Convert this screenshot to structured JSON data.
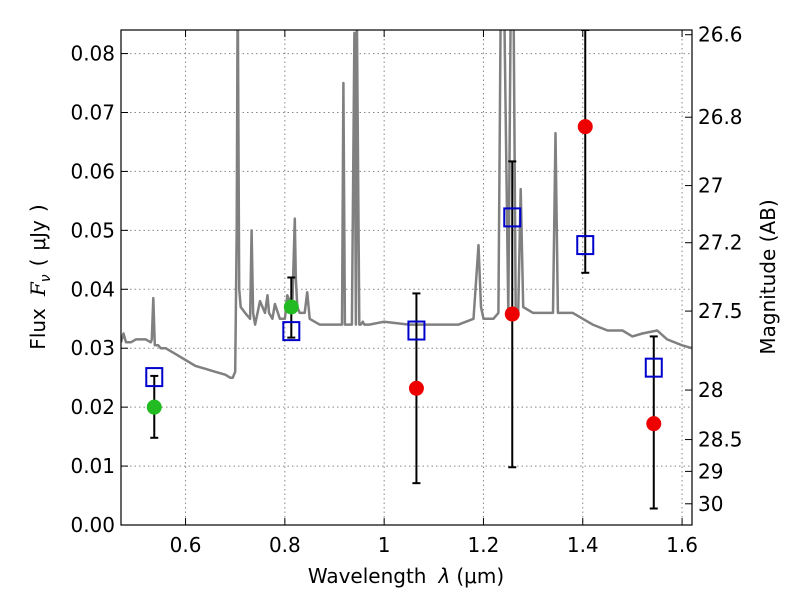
{
  "chart_data": {
    "type": "scatter",
    "xlabel": "Wavelength",
    "xlabel_symbol": "λ",
    "xlabel_unit": "(μm)",
    "ylabel": "Flux",
    "ylabel_symbol": "F",
    "ylabel_subscript": "ν",
    "ylabel_unit": "μJy",
    "y2label": "Magnitude (AB)",
    "xlim": [
      0.47,
      1.62
    ],
    "ylim": [
      0.0,
      0.084
    ],
    "grid": true,
    "x_ticks": [
      0.6,
      0.8,
      1.0,
      1.2,
      1.4,
      1.6
    ],
    "x_tick_labels": [
      "0.6",
      "0.8",
      "1",
      "1.2",
      "1.4",
      "1.6"
    ],
    "y_ticks": [
      0.0,
      0.01,
      0.02,
      0.03,
      0.04,
      0.05,
      0.06,
      0.07,
      0.08
    ],
    "y_tick_labels": [
      "0.00",
      "0.01",
      "0.02",
      "0.03",
      "0.04",
      "0.05",
      "0.06",
      "0.07",
      "0.08"
    ],
    "y2_ticks": [
      {
        "label": "26.6",
        "flux": 0.0832
      },
      {
        "label": "26.8",
        "flux": 0.0692
      },
      {
        "label": "27",
        "flux": 0.0576
      },
      {
        "label": "27.2",
        "flux": 0.0479
      },
      {
        "label": "27.5",
        "flux": 0.0363
      },
      {
        "label": "28",
        "flux": 0.0229
      },
      {
        "label": "28.5",
        "flux": 0.0145
      },
      {
        "label": "29",
        "flux": 0.0091
      },
      {
        "label": "30",
        "flux": 0.0036
      }
    ],
    "colors": {
      "model": "#808080",
      "detection": "#22bb22",
      "upper_limit": "#ee0000",
      "model_band": "#0000cc",
      "errorbar": "#000000",
      "grid": "#888888"
    },
    "model_spectrum": {
      "x": [
        0.47,
        0.475,
        0.48,
        0.49,
        0.5,
        0.51,
        0.52,
        0.53,
        0.532,
        0.535,
        0.538,
        0.545,
        0.55,
        0.56,
        0.57,
        0.58,
        0.6,
        0.62,
        0.64,
        0.66,
        0.68,
        0.69,
        0.695,
        0.7,
        0.703,
        0.705,
        0.708,
        0.711,
        0.72,
        0.73,
        0.733,
        0.736,
        0.74,
        0.75,
        0.76,
        0.765,
        0.768,
        0.775,
        0.78,
        0.79,
        0.8,
        0.805,
        0.81,
        0.815,
        0.82,
        0.822,
        0.825,
        0.83,
        0.84,
        0.845,
        0.85,
        0.86,
        0.87,
        0.88,
        0.9,
        0.915,
        0.918,
        0.921,
        0.925,
        0.935,
        0.94,
        0.943,
        0.945,
        0.95,
        0.953,
        0.957,
        0.96,
        0.97,
        1.0,
        1.05,
        1.1,
        1.15,
        1.18,
        1.19,
        1.195,
        1.2,
        1.21,
        1.22,
        1.23,
        1.235,
        1.24,
        1.25,
        1.255,
        1.26,
        1.265,
        1.27,
        1.275,
        1.28,
        1.3,
        1.33,
        1.34,
        1.345,
        1.35,
        1.36,
        1.37,
        1.38,
        1.4,
        1.42,
        1.45,
        1.48,
        1.5,
        1.52,
        1.55,
        1.57,
        1.6,
        1.62
      ],
      "y": [
        0.031,
        0.0325,
        0.031,
        0.031,
        0.0315,
        0.0315,
        0.0315,
        0.031,
        0.0315,
        0.0385,
        0.0305,
        0.0305,
        0.03,
        0.03,
        0.0295,
        0.029,
        0.028,
        0.027,
        0.0265,
        0.026,
        0.0255,
        0.025,
        0.025,
        0.026,
        0.05,
        0.092,
        0.04,
        0.037,
        0.036,
        0.035,
        0.05,
        0.036,
        0.034,
        0.038,
        0.036,
        0.039,
        0.036,
        0.035,
        0.0375,
        0.035,
        0.035,
        0.039,
        0.038,
        0.037,
        0.052,
        0.042,
        0.037,
        0.036,
        0.036,
        0.0395,
        0.035,
        0.0345,
        0.034,
        0.034,
        0.034,
        0.034,
        0.075,
        0.034,
        0.034,
        0.034,
        0.0835,
        0.034,
        0.088,
        0.034,
        0.034,
        0.0345,
        0.034,
        0.034,
        0.0345,
        0.034,
        0.034,
        0.034,
        0.035,
        0.0475,
        0.037,
        0.035,
        0.035,
        0.035,
        0.036,
        0.09,
        0.1,
        0.036,
        0.09,
        0.095,
        0.036,
        0.036,
        0.057,
        0.037,
        0.036,
        0.036,
        0.036,
        0.0665,
        0.036,
        0.036,
        0.036,
        0.036,
        0.035,
        0.034,
        0.033,
        0.033,
        0.032,
        0.0325,
        0.033,
        0.0315,
        0.0305,
        0.03
      ]
    },
    "series": [
      {
        "kind": "detection",
        "points": [
          {
            "x": 0.537,
            "y": 0.02
          },
          {
            "x": 0.813,
            "y": 0.037
          }
        ]
      },
      {
        "kind": "upper_limit",
        "points": [
          {
            "x": 1.065,
            "y": 0.0232
          },
          {
            "x": 1.258,
            "y": 0.0358
          },
          {
            "x": 1.405,
            "y": 0.0676
          },
          {
            "x": 1.543,
            "y": 0.0172
          }
        ]
      },
      {
        "kind": "model_band",
        "points": [
          {
            "x": 0.537,
            "y": 0.0251
          },
          {
            "x": 0.813,
            "y": 0.0329
          },
          {
            "x": 1.065,
            "y": 0.033
          },
          {
            "x": 1.258,
            "y": 0.0522
          },
          {
            "x": 1.405,
            "y": 0.0475
          },
          {
            "x": 1.543,
            "y": 0.0267
          }
        ]
      }
    ],
    "errorbars": [
      {
        "x": 0.537,
        "ylow": 0.0148,
        "yhigh": 0.0253
      },
      {
        "x": 0.813,
        "ylow": 0.0318,
        "yhigh": 0.042
      },
      {
        "x": 1.065,
        "ylow": 0.0071,
        "yhigh": 0.0393
      },
      {
        "x": 1.258,
        "ylow": 0.0098,
        "yhigh": 0.0617
      },
      {
        "x": 1.405,
        "ylow": 0.0428,
        "yhigh": 0.084
      },
      {
        "x": 1.543,
        "ylow": 0.0028,
        "yhigh": 0.032
      }
    ]
  }
}
